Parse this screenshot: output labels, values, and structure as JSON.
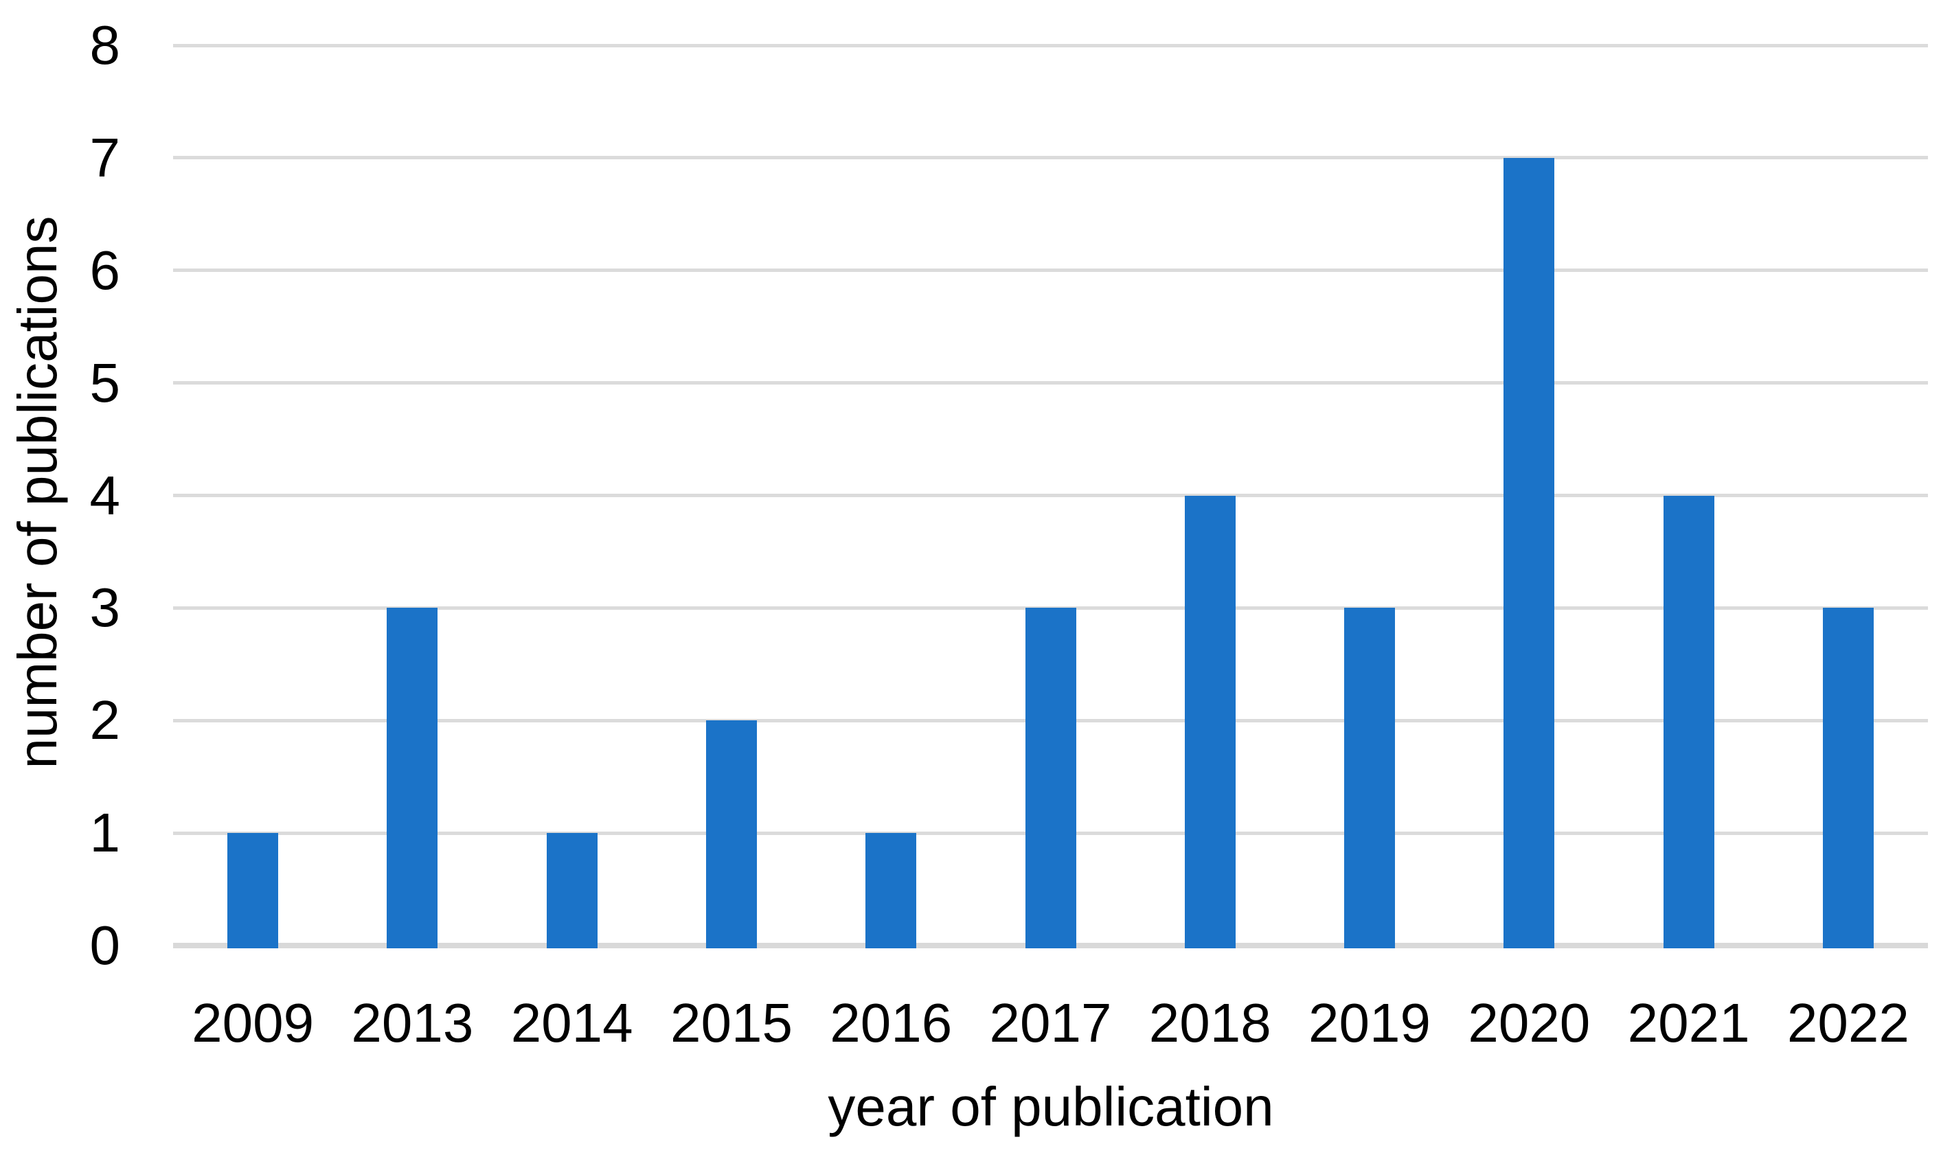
{
  "figure": {
    "background": "#FFFFFF"
  },
  "chart_data": {
    "type": "bar",
    "title": "",
    "xlabel": "year of publication",
    "ylabel": "number of publications",
    "categories": [
      "2009",
      "2013",
      "2014",
      "2015",
      "2016",
      "2017",
      "2018",
      "2019",
      "2020",
      "2021",
      "2022"
    ],
    "values": [
      1,
      3,
      1,
      2,
      1,
      3,
      4,
      3,
      7,
      4,
      3
    ],
    "series": [
      {
        "name": "number of publications",
        "values": [
          1,
          3,
          1,
          2,
          1,
          3,
          4,
          3,
          7,
          4,
          3
        ]
      }
    ],
    "ylim": [
      0,
      8
    ],
    "y_ticks": [
      0,
      1,
      2,
      3,
      4,
      5,
      6,
      7,
      8
    ],
    "grid": "horizontal",
    "legend": "none",
    "colors": {
      "bar": "#1B73C8",
      "gridline": "#DBDBDB",
      "axis_line": "#D9D9D9",
      "text": "#000000"
    }
  }
}
